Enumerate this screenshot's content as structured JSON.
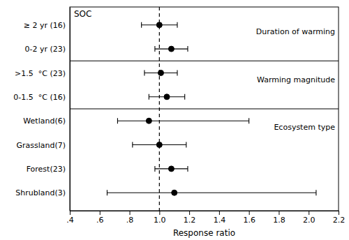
{
  "chart_data": {
    "type": "forest",
    "orientation": "horizontal",
    "categories": [
      "≥ 2 yr (16)",
      "0-2 yr (23)",
      ">1.5  °C (23)",
      "0-1.5  °C (16)",
      "Wetland(6)",
      "Grassland(7)",
      "Forest(23)",
      "Shrubland(3)"
    ],
    "values": [
      1.0,
      1.08,
      1.01,
      1.05,
      0.93,
      1.0,
      1.08,
      1.1
    ],
    "ci_low": [
      0.88,
      0.97,
      0.9,
      0.93,
      0.72,
      0.82,
      0.97,
      0.65
    ],
    "ci_high": [
      1.12,
      1.19,
      1.12,
      1.17,
      1.6,
      1.18,
      1.19,
      2.05
    ],
    "sections": [
      {
        "label": "Duration of warming",
        "categories": [
          "≥ 2 yr (16)",
          "0-2 yr (23)"
        ]
      },
      {
        "label": "Warming magnitude",
        "categories": [
          ">1.5  °C (23)",
          "0-1.5  °C (16)"
        ]
      },
      {
        "label": "Ecosystem type",
        "categories": [
          "Wetland(6)",
          "Grassland(7)",
          "Forest(23)",
          "Shrubland(3)"
        ]
      }
    ],
    "annotations": [
      "SOC"
    ],
    "xlabel": "Response ratio",
    "xlim": [
      0.4,
      2.2
    ],
    "xticks": [
      {
        "value": 0.4,
        "label": ".4"
      },
      {
        "value": 0.6,
        "label": ".6"
      },
      {
        "value": 0.8,
        "label": ".8"
      },
      {
        "value": 1.0,
        "label": "1.0"
      },
      1.2,
      1.4,
      1.6,
      1.8,
      {
        "value": 2.0,
        "label": "2.0"
      },
      2.2
    ],
    "reference_line": 1.0,
    "color": "black",
    "marker": "circle",
    "grid": false
  }
}
